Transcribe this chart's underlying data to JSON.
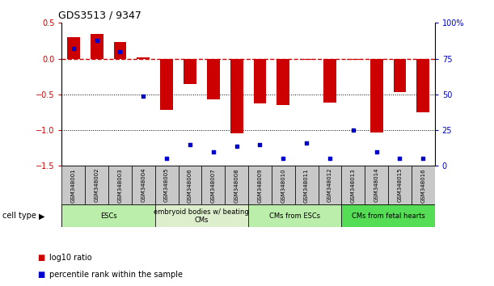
{
  "title": "GDS3513 / 9347",
  "samples": [
    "GSM348001",
    "GSM348002",
    "GSM348003",
    "GSM348004",
    "GSM348005",
    "GSM348006",
    "GSM348007",
    "GSM348008",
    "GSM348009",
    "GSM348010",
    "GSM348011",
    "GSM348012",
    "GSM348013",
    "GSM348014",
    "GSM348015",
    "GSM348016"
  ],
  "log10_ratio": [
    0.3,
    0.35,
    0.23,
    0.02,
    -0.72,
    -0.35,
    -0.57,
    -1.05,
    -0.63,
    -0.65,
    -0.02,
    -0.62,
    -0.02,
    -1.03,
    -0.47,
    -0.75
  ],
  "percentile_rank": [
    82,
    88,
    80,
    49,
    5,
    15,
    10,
    14,
    15,
    5,
    16,
    5,
    25,
    10,
    5,
    5
  ],
  "cell_type_groups": [
    {
      "label": "ESCs",
      "start": 0,
      "end": 3,
      "color": "#BBEEAA"
    },
    {
      "label": "embryoid bodies w/ beating\nCMs",
      "start": 4,
      "end": 7,
      "color": "#DDEECC"
    },
    {
      "label": "CMs from ESCs",
      "start": 8,
      "end": 11,
      "color": "#BBEEAA"
    },
    {
      "label": "CMs from fetal hearts",
      "start": 12,
      "end": 15,
      "color": "#55DD55"
    }
  ],
  "left_ylim": [
    -1.5,
    0.5
  ],
  "right_ylim": [
    0,
    100
  ],
  "left_yticks": [
    -1.5,
    -1.0,
    -0.5,
    0.0,
    0.5
  ],
  "right_yticks": [
    0,
    25,
    50,
    75,
    100
  ],
  "right_yticklabels": [
    "0",
    "25",
    "50",
    "75",
    "100%"
  ],
  "bar_color": "#CC0000",
  "dot_color": "#0000CC",
  "zero_line_color": "#CC0000",
  "hline_color": "black",
  "sample_box_color": "#C8C8C8",
  "legend_items": [
    {
      "label": "log10 ratio",
      "color": "#CC0000"
    },
    {
      "label": "percentile rank within the sample",
      "color": "#0000CC"
    }
  ]
}
